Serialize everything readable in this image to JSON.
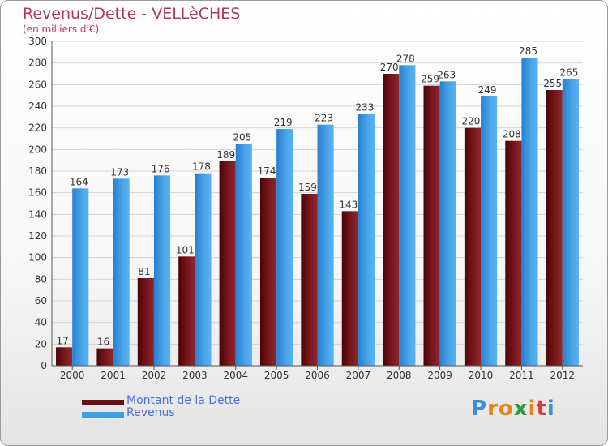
{
  "header": {
    "title": "Revenus/Dette - VELLèCHES",
    "subtitle": "(en milliers d'€)"
  },
  "legend": {
    "items": [
      {
        "label": "Montant de la Dette",
        "color": "#6b0f14"
      },
      {
        "label": "Revenus",
        "color": "#3f9fe6"
      }
    ]
  },
  "logo": {
    "letters": [
      "P",
      "r",
      "o",
      "x",
      "i",
      "t",
      "i"
    ],
    "colors": [
      "#3a8fd6",
      "#e8861c",
      "#e8861c",
      "#2e9a3a",
      "#e8861c",
      "#d63a3a",
      "#3a8fd6"
    ]
  },
  "colors": {
    "debt": "#6b0f14",
    "revenue": "#3f9fe6",
    "label_text": "#333333"
  },
  "chart_data": {
    "type": "bar",
    "categories": [
      "2000",
      "2001",
      "2002",
      "2003",
      "2004",
      "2005",
      "2006",
      "2007",
      "2008",
      "2009",
      "2010",
      "2011",
      "2012"
    ],
    "series": [
      {
        "name": "Montant de la Dette",
        "values": [
          17,
          16,
          81,
          101,
          189,
          174,
          159,
          143,
          270,
          259,
          220,
          208,
          255
        ]
      },
      {
        "name": "Revenus",
        "values": [
          164,
          173,
          176,
          178,
          205,
          219,
          223,
          233,
          278,
          263,
          249,
          285,
          265
        ]
      }
    ],
    "ylim": [
      0,
      300
    ],
    "yticks": [
      0,
      20,
      40,
      60,
      80,
      100,
      120,
      140,
      160,
      180,
      200,
      220,
      240,
      260,
      280,
      300
    ],
    "grid": true,
    "legend_position": "bottom-left"
  }
}
